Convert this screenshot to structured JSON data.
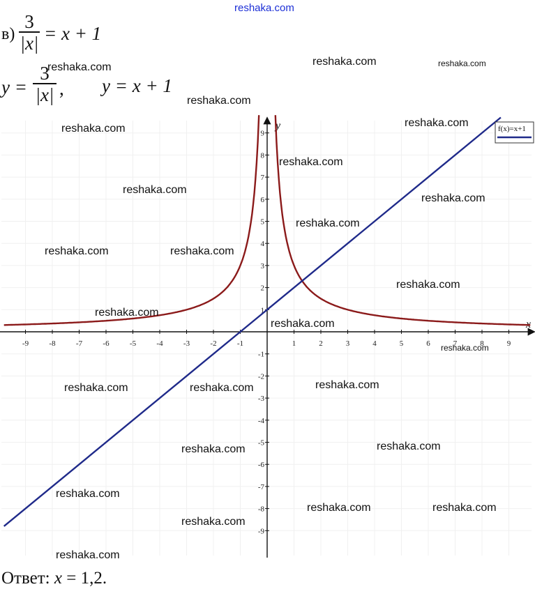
{
  "site": "reshaka.com",
  "problem": {
    "label": "в)",
    "lhs_num": "3",
    "lhs_den": "|x|",
    "rhs": "= x + 1"
  },
  "functions": {
    "f1_lhs": "y =",
    "f1_num": "3",
    "f1_den": "|x|",
    "f1_comma": ",",
    "f2": "y = x + 1"
  },
  "answer": {
    "prefix": "Ответ:",
    "var": "x",
    "eq": "=",
    "value": "1,2."
  },
  "watermark": "reshaka.com",
  "chart_data": {
    "type": "line",
    "xlabel": "x",
    "ylabel": "y",
    "xlim": [
      -9.8,
      9.9
    ],
    "ylim": [
      -9.9,
      9.6
    ],
    "x_ticks": [
      -9,
      -8,
      -7,
      -6,
      -5,
      -4,
      -3,
      -2,
      -1,
      1,
      2,
      3,
      4,
      5,
      6,
      7,
      8,
      9
    ],
    "y_ticks": [
      9,
      8,
      7,
      6,
      5,
      4,
      3,
      2,
      1,
      -1,
      -2,
      -3,
      -4,
      -5,
      -6,
      -7,
      -8,
      -9
    ],
    "legend": {
      "label": "f(x)=x+1",
      "placement": "top-right"
    },
    "series": [
      {
        "name": "f(x)=x+1",
        "formula": "y = x + 1",
        "color": "#1f2a8a",
        "points": [
          [
            -9.8,
            -8.8
          ],
          [
            8.7,
            9.7
          ]
        ]
      },
      {
        "formula": "y = 3/|x|",
        "color": "#8b1a1a",
        "points": [
          [
            -9.8,
            0.31
          ],
          [
            -6,
            0.5
          ],
          [
            -4,
            0.75
          ],
          [
            -3,
            1
          ],
          [
            -2,
            1.5
          ],
          [
            -1.5,
            2
          ],
          [
            -1,
            3
          ],
          [
            -0.75,
            4
          ],
          [
            -0.5,
            6
          ],
          [
            -0.35,
            8.6
          ],
          [
            0.35,
            8.6
          ],
          [
            0.5,
            6
          ],
          [
            0.75,
            4
          ],
          [
            1,
            3
          ],
          [
            1.5,
            2
          ],
          [
            2,
            1.5
          ],
          [
            3,
            1
          ],
          [
            4,
            0.75
          ],
          [
            6,
            0.5
          ],
          [
            9.8,
            0.31
          ]
        ]
      }
    ],
    "intersection": {
      "x": 1.2,
      "y": 2.2
    }
  },
  "colors": {
    "line": "#1f2a8a",
    "curve": "#8b1a1a",
    "site": "#1c2fd6"
  }
}
